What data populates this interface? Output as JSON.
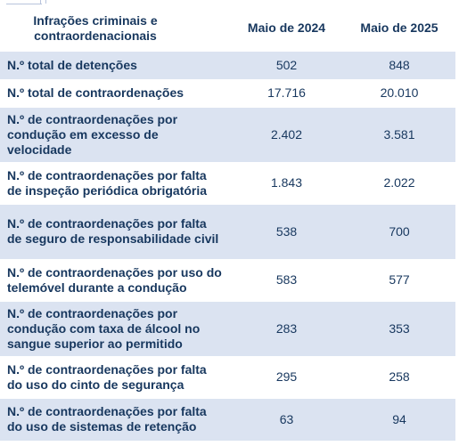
{
  "table": {
    "headers": {
      "label": "Infrações criminais e contraordenacionais",
      "col_a": "Maio de 2024",
      "col_b": "Maio de 2025"
    },
    "rows": [
      {
        "label": "N.º total de detenções",
        "a": "502",
        "b": "848"
      },
      {
        "label": "N.º total de contraordenações",
        "a": "17.716",
        "b": "20.010"
      },
      {
        "label": "N.º de contraordenações por condução em excesso de velocidade",
        "a": "2.402",
        "b": "3.581"
      },
      {
        "label": "N.º de contraordenações por falta de inspeção periódica obrigatória",
        "a": "1.843",
        "b": "2.022"
      },
      {
        "label": "N.º de contraordenações por falta de seguro de responsabilidade civil",
        "a": "538",
        "b": "700"
      },
      {
        "label": "N.º de contraordenações por uso do telemóvel durante a condução",
        "a": "583",
        "b": "577"
      },
      {
        "label": "N.º de contraordenações por condução com taxa de álcool no sangue superior ao permitido",
        "a": "283",
        "b": "353"
      },
      {
        "label": "N.º de contraordenações por falta do uso do cinto de segurança",
        "a": "295",
        "b": "258"
      },
      {
        "label": "N.º de contraordenações por falta do uso de sistemas de retenção",
        "a": "63",
        "b": "94"
      }
    ]
  },
  "colors": {
    "text": "#17375e",
    "row_shade": "#dbe3f1",
    "row_plain": "#ffffff"
  }
}
